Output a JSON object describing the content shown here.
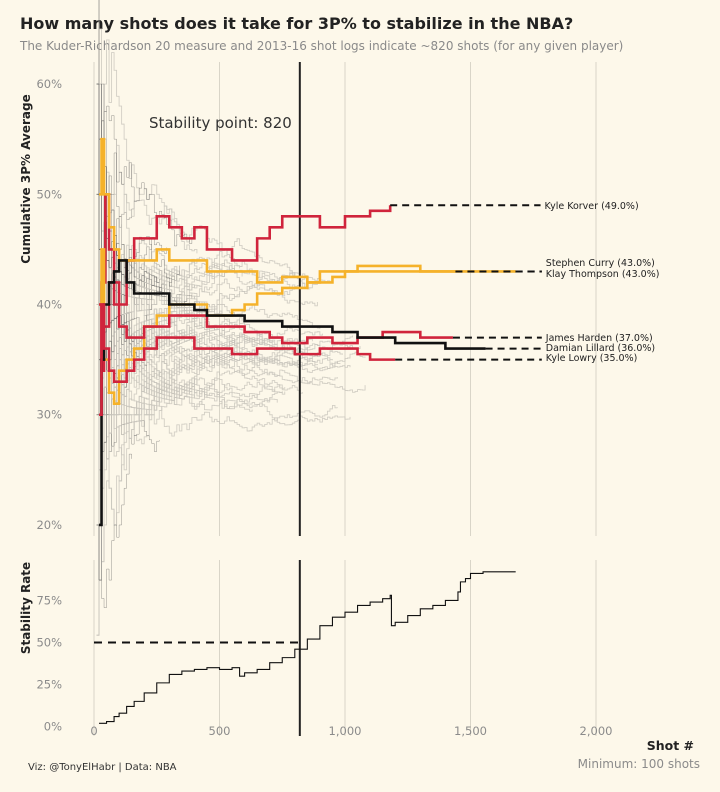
{
  "header": {
    "title": "How many shots does it take for 3P% to stabilize in the NBA?",
    "subtitle": "The Kuder-Richardson 20 measure and 2013-16 shot logs indicate ~820 shots (for any given player)"
  },
  "footer": {
    "caption": "Viz: @TonyElHabr | Data: NBA",
    "x_title": "Shot #",
    "minimum_note": "Minimum: 100 shots"
  },
  "colors": {
    "background": "#fdf8ea",
    "red": "#d0243c",
    "gold": "#f5b22a",
    "black": "#111111",
    "grey_lines": "#c8c4bb",
    "grid": "#d9d5c8"
  },
  "chart_data": [
    {
      "type": "line",
      "panel": "top",
      "ylabel": "Cumulative 3P% Average",
      "y_ticks": [
        "20%",
        "30%",
        "40%",
        "50%",
        "60%"
      ],
      "y_tick_values": [
        0.2,
        0.3,
        0.4,
        0.5,
        0.6
      ],
      "ylim": [
        0.19,
        0.62
      ],
      "x_ticks": [
        0,
        500,
        1000,
        1500,
        2000
      ],
      "xlim": [
        -20,
        2250
      ],
      "annotation": {
        "text": "Stability point: 820",
        "x": 820
      },
      "series": [
        {
          "name": "Kyle Korver (49.0%)",
          "color": "#d0243c",
          "final": 0.49,
          "last_x": 1180,
          "label_x": 1795,
          "points": [
            [
              20,
              0.3
            ],
            [
              30,
              0.42
            ],
            [
              45,
              0.5
            ],
            [
              60,
              0.45
            ],
            [
              80,
              0.42
            ],
            [
              100,
              0.4
            ],
            [
              130,
              0.44
            ],
            [
              160,
              0.46
            ],
            [
              200,
              0.46
            ],
            [
              250,
              0.48
            ],
            [
              300,
              0.47
            ],
            [
              350,
              0.46
            ],
            [
              400,
              0.47
            ],
            [
              450,
              0.45
            ],
            [
              500,
              0.45
            ],
            [
              550,
              0.44
            ],
            [
              600,
              0.44
            ],
            [
              650,
              0.46
            ],
            [
              700,
              0.47
            ],
            [
              750,
              0.48
            ],
            [
              800,
              0.48
            ],
            [
              850,
              0.48
            ],
            [
              900,
              0.47
            ],
            [
              950,
              0.47
            ],
            [
              1000,
              0.48
            ],
            [
              1050,
              0.48
            ],
            [
              1100,
              0.485
            ],
            [
              1180,
              0.49
            ]
          ]
        },
        {
          "name": "Stephen Curry (43.0%)",
          "color": "#f5b22a",
          "final": 0.43,
          "last_x": 1680,
          "label_x": 1800,
          "points": [
            [
              20,
              0.5
            ],
            [
              30,
              0.55
            ],
            [
              40,
              0.5
            ],
            [
              60,
              0.47
            ],
            [
              80,
              0.45
            ],
            [
              100,
              0.44
            ],
            [
              150,
              0.44
            ],
            [
              200,
              0.44
            ],
            [
              250,
              0.45
            ],
            [
              300,
              0.44
            ],
            [
              350,
              0.44
            ],
            [
              400,
              0.44
            ],
            [
              450,
              0.43
            ],
            [
              500,
              0.43
            ],
            [
              550,
              0.43
            ],
            [
              600,
              0.43
            ],
            [
              650,
              0.42
            ],
            [
              700,
              0.42
            ],
            [
              750,
              0.425
            ],
            [
              800,
              0.425
            ],
            [
              850,
              0.42
            ],
            [
              900,
              0.42
            ],
            [
              950,
              0.425
            ],
            [
              1000,
              0.43
            ],
            [
              1050,
              0.43
            ],
            [
              1100,
              0.43
            ],
            [
              1150,
              0.43
            ],
            [
              1200,
              0.43
            ],
            [
              1300,
              0.43
            ],
            [
              1400,
              0.43
            ],
            [
              1500,
              0.43
            ],
            [
              1600,
              0.43
            ],
            [
              1680,
              0.43
            ]
          ]
        },
        {
          "name": "Klay Thompson (43.0%)",
          "color": "#f5b22a",
          "final": 0.43,
          "last_x": 1440,
          "label_x": 1800,
          "points": [
            [
              20,
              0.4
            ],
            [
              30,
              0.45
            ],
            [
              40,
              0.35
            ],
            [
              60,
              0.32
            ],
            [
              80,
              0.31
            ],
            [
              100,
              0.34
            ],
            [
              130,
              0.35
            ],
            [
              160,
              0.36
            ],
            [
              200,
              0.38
            ],
            [
              250,
              0.39
            ],
            [
              300,
              0.4
            ],
            [
              350,
              0.4
            ],
            [
              400,
              0.4
            ],
            [
              450,
              0.39
            ],
            [
              500,
              0.39
            ],
            [
              550,
              0.395
            ],
            [
              600,
              0.4
            ],
            [
              650,
              0.41
            ],
            [
              700,
              0.41
            ],
            [
              750,
              0.415
            ],
            [
              800,
              0.415
            ],
            [
              850,
              0.42
            ],
            [
              900,
              0.43
            ],
            [
              950,
              0.43
            ],
            [
              1000,
              0.43
            ],
            [
              1050,
              0.435
            ],
            [
              1100,
              0.435
            ],
            [
              1200,
              0.435
            ],
            [
              1300,
              0.43
            ],
            [
              1440,
              0.43
            ]
          ]
        },
        {
          "name": "James Harden (37.0%)",
          "color": "#d0243c",
          "final": 0.37,
          "last_x": 1430,
          "label_x": 1800,
          "points": [
            [
              20,
              0.4
            ],
            [
              30,
              0.34
            ],
            [
              40,
              0.38
            ],
            [
              60,
              0.42
            ],
            [
              80,
              0.4
            ],
            [
              100,
              0.38
            ],
            [
              130,
              0.37
            ],
            [
              160,
              0.37
            ],
            [
              200,
              0.38
            ],
            [
              250,
              0.38
            ],
            [
              300,
              0.39
            ],
            [
              350,
              0.39
            ],
            [
              400,
              0.39
            ],
            [
              450,
              0.38
            ],
            [
              500,
              0.38
            ],
            [
              550,
              0.38
            ],
            [
              600,
              0.375
            ],
            [
              650,
              0.375
            ],
            [
              700,
              0.37
            ],
            [
              750,
              0.365
            ],
            [
              800,
              0.365
            ],
            [
              850,
              0.37
            ],
            [
              900,
              0.37
            ],
            [
              950,
              0.365
            ],
            [
              1000,
              0.365
            ],
            [
              1050,
              0.37
            ],
            [
              1100,
              0.37
            ],
            [
              1150,
              0.375
            ],
            [
              1200,
              0.375
            ],
            [
              1300,
              0.37
            ],
            [
              1430,
              0.37
            ]
          ]
        },
        {
          "name": "Damian Lillard (36.0%)",
          "color": "#111111",
          "final": 0.36,
          "last_x": 1560,
          "label_x": 1800,
          "points": [
            [
              20,
              0.2
            ],
            [
              30,
              0.35
            ],
            [
              40,
              0.4
            ],
            [
              60,
              0.42
            ],
            [
              80,
              0.43
            ],
            [
              100,
              0.44
            ],
            [
              130,
              0.42
            ],
            [
              160,
              0.41
            ],
            [
              200,
              0.41
            ],
            [
              250,
              0.41
            ],
            [
              300,
              0.4
            ],
            [
              350,
              0.4
            ],
            [
              400,
              0.395
            ],
            [
              450,
              0.39
            ],
            [
              500,
              0.39
            ],
            [
              550,
              0.39
            ],
            [
              600,
              0.385
            ],
            [
              650,
              0.385
            ],
            [
              700,
              0.385
            ],
            [
              750,
              0.38
            ],
            [
              800,
              0.38
            ],
            [
              850,
              0.38
            ],
            [
              900,
              0.38
            ],
            [
              950,
              0.375
            ],
            [
              1000,
              0.375
            ],
            [
              1050,
              0.37
            ],
            [
              1100,
              0.37
            ],
            [
              1150,
              0.37
            ],
            [
              1200,
              0.365
            ],
            [
              1300,
              0.365
            ],
            [
              1400,
              0.36
            ],
            [
              1500,
              0.36
            ],
            [
              1560,
              0.36
            ]
          ]
        },
        {
          "name": "Kyle Lowry (35.0%)",
          "color": "#d0243c",
          "final": 0.35,
          "last_x": 1200,
          "label_x": 1800,
          "points": [
            [
              20,
              0.3
            ],
            [
              30,
              0.4
            ],
            [
              40,
              0.36
            ],
            [
              60,
              0.34
            ],
            [
              80,
              0.33
            ],
            [
              100,
              0.33
            ],
            [
              130,
              0.34
            ],
            [
              160,
              0.35
            ],
            [
              200,
              0.36
            ],
            [
              250,
              0.37
            ],
            [
              300,
              0.37
            ],
            [
              350,
              0.37
            ],
            [
              400,
              0.36
            ],
            [
              450,
              0.36
            ],
            [
              500,
              0.36
            ],
            [
              550,
              0.355
            ],
            [
              600,
              0.355
            ],
            [
              650,
              0.36
            ],
            [
              700,
              0.36
            ],
            [
              750,
              0.36
            ],
            [
              800,
              0.355
            ],
            [
              850,
              0.355
            ],
            [
              900,
              0.36
            ],
            [
              950,
              0.36
            ],
            [
              1000,
              0.36
            ],
            [
              1050,
              0.355
            ],
            [
              1100,
              0.35
            ],
            [
              1150,
              0.35
            ],
            [
              1200,
              0.35
            ]
          ]
        }
      ]
    },
    {
      "type": "line",
      "panel": "bottom",
      "ylabel": "Stability Rate",
      "y_ticks": [
        "0%",
        "25%",
        "50%",
        "75%"
      ],
      "y_tick_values": [
        0,
        0.25,
        0.5,
        0.75
      ],
      "ylim": [
        -0.02,
        0.99
      ],
      "x_ticks": [
        "0",
        "500",
        "1,000",
        "1,500",
        "2,000"
      ],
      "x_tick_values": [
        0,
        500,
        1000,
        1500,
        2000
      ],
      "reference_line": {
        "y": 0.5,
        "x_end": 820
      },
      "series": [
        {
          "name": "",
          "color": "#111111",
          "points": [
            [
              20,
              0.02
            ],
            [
              50,
              0.03
            ],
            [
              80,
              0.06
            ],
            [
              100,
              0.08
            ],
            [
              130,
              0.12
            ],
            [
              160,
              0.15
            ],
            [
              200,
              0.2
            ],
            [
              250,
              0.26
            ],
            [
              300,
              0.31
            ],
            [
              350,
              0.33
            ],
            [
              400,
              0.34
            ],
            [
              450,
              0.35
            ],
            [
              500,
              0.34
            ],
            [
              550,
              0.35
            ],
            [
              580,
              0.3
            ],
            [
              600,
              0.32
            ],
            [
              650,
              0.34
            ],
            [
              700,
              0.38
            ],
            [
              750,
              0.41
            ],
            [
              800,
              0.46
            ],
            [
              850,
              0.52
            ],
            [
              900,
              0.6
            ],
            [
              950,
              0.65
            ],
            [
              1000,
              0.68
            ],
            [
              1050,
              0.72
            ],
            [
              1100,
              0.74
            ],
            [
              1150,
              0.76
            ],
            [
              1180,
              0.78
            ],
            [
              1185,
              0.6
            ],
            [
              1200,
              0.62
            ],
            [
              1250,
              0.66
            ],
            [
              1300,
              0.7
            ],
            [
              1350,
              0.72
            ],
            [
              1400,
              0.75
            ],
            [
              1450,
              0.8
            ],
            [
              1460,
              0.86
            ],
            [
              1480,
              0.88
            ],
            [
              1500,
              0.91
            ],
            [
              1550,
              0.92
            ],
            [
              1600,
              0.92
            ],
            [
              1680,
              0.92
            ]
          ]
        }
      ]
    }
  ]
}
